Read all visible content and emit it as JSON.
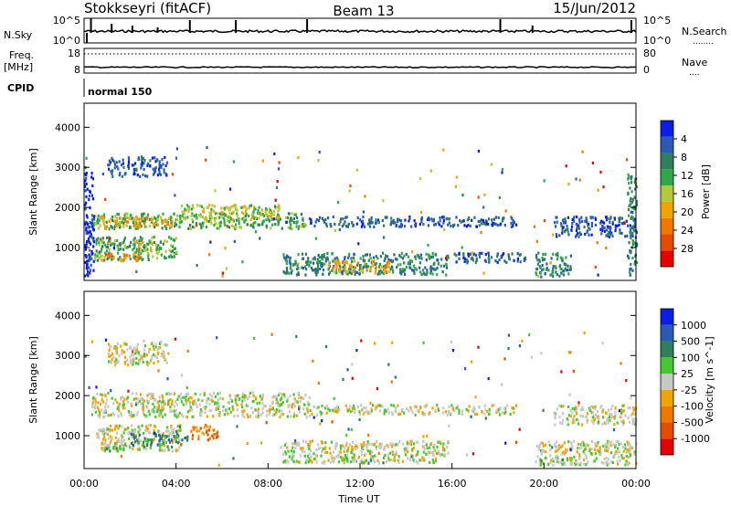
{
  "header": {
    "station": "Stokkseyri (fitACF)",
    "beam": "Beam 13",
    "date": "15/Jun/2012"
  },
  "noise_panel": {
    "left_label": "N.Sky",
    "right_label": "N.Search",
    "right_line_label": "........",
    "left_ticks": [
      "10^5",
      "10^0"
    ],
    "right_ticks": [
      "10^5",
      "10^0"
    ]
  },
  "freq_panel": {
    "left_label_top": "Freq.",
    "left_label_bottom": "[MHz]",
    "right_label": "Nave",
    "right_line_label": "....",
    "left_ticks": [
      "18",
      "8"
    ],
    "right_ticks": [
      "80",
      "0"
    ]
  },
  "cpid_panel": {
    "label": "CPID",
    "value": "normal 150"
  },
  "chart_data": [
    {
      "type": "heatmap",
      "name": "power",
      "ylabel": "Slant Range [km]",
      "ylim": [
        180,
        4600
      ],
      "yticks": [
        "1000",
        "2000",
        "3000",
        "4000"
      ],
      "ytick_values": [
        1000,
        2000,
        3000,
        4000
      ],
      "xlim": [
        0,
        24
      ],
      "colorbar_label": "Power [dB]",
      "colorbar_ticks": [
        "4",
        "8",
        "12",
        "16",
        "20",
        "24",
        "28"
      ],
      "colors": [
        "#0a1ee6",
        "#2a5ab4",
        "#2f7f5a",
        "#2fa84a",
        "#b4c83a",
        "#f0a400",
        "#f07800",
        "#e64b00",
        "#e60000"
      ],
      "regions": [
        {
          "t0": 0.3,
          "t1": 9.6,
          "r0": 1500,
          "r1": 1900,
          "level": 3
        },
        {
          "t0": 0.6,
          "t1": 3.8,
          "r0": 1550,
          "r1": 1800,
          "level": 5
        },
        {
          "t0": 4.2,
          "t1": 8.5,
          "r0": 1700,
          "r1": 2100,
          "level": 4
        },
        {
          "t0": 0.4,
          "t1": 4.0,
          "r0": 700,
          "r1": 1300,
          "level": 3
        },
        {
          "t0": 0.8,
          "t1": 2.4,
          "r0": 700,
          "r1": 900,
          "level": 6
        },
        {
          "t0": 2.2,
          "t1": 3.0,
          "r0": 950,
          "r1": 1200,
          "level": 5
        },
        {
          "t0": 1.0,
          "t1": 3.6,
          "r0": 2800,
          "r1": 3300,
          "level": 1
        },
        {
          "t0": 8.6,
          "t1": 15.8,
          "r0": 350,
          "r1": 900,
          "level": 2
        },
        {
          "t0": 10.6,
          "t1": 13.4,
          "r0": 400,
          "r1": 700,
          "level": 5
        },
        {
          "t0": 9.6,
          "t1": 18.8,
          "r0": 1550,
          "r1": 1800,
          "level": 1
        },
        {
          "t0": 16.0,
          "t1": 19.2,
          "r0": 650,
          "r1": 900,
          "level": 1
        },
        {
          "t0": 19.6,
          "t1": 21.2,
          "r0": 300,
          "r1": 900,
          "level": 2
        },
        {
          "t0": 20.4,
          "t1": 24.0,
          "r0": 1300,
          "r1": 1800,
          "level": 1
        },
        {
          "t0": 23.6,
          "t1": 24.0,
          "r0": 300,
          "r1": 2900,
          "level": 2
        },
        {
          "t0": 0.0,
          "t1": 0.4,
          "r0": 300,
          "r1": 2900,
          "level": 0
        }
      ]
    },
    {
      "type": "heatmap",
      "name": "velocity",
      "ylabel": "Slant Range [km]",
      "ylim": [
        180,
        4600
      ],
      "yticks": [
        "1000",
        "2000",
        "3000",
        "4000"
      ],
      "ytick_values": [
        1000,
        2000,
        3000,
        4000
      ],
      "xlim": [
        0,
        24
      ],
      "xlabel": "Time UT",
      "xticks": [
        "00:00",
        "04:00",
        "08:00",
        "12:00",
        "16:00",
        "20:00",
        "00:00"
      ],
      "colorbar_label": "Velocity [m s^-1]",
      "colorbar_ticks": [
        "1000",
        "500",
        "100",
        "25",
        "-25",
        "-100",
        "-500",
        "-1000"
      ],
      "colors": [
        "#0a1ee6",
        "#2a5ab4",
        "#2f7f5a",
        "#46c832",
        "#c8c8c8",
        "#f0a400",
        "#f07800",
        "#e64b00",
        "#e60000"
      ],
      "regions": [
        {
          "t0": 0.3,
          "t1": 9.8,
          "r0": 1500,
          "r1": 2100,
          "level": 4
        },
        {
          "t0": 0.5,
          "t1": 4.2,
          "r0": 650,
          "r1": 1300,
          "level": 4
        },
        {
          "t0": 0.8,
          "t1": 2.0,
          "r0": 650,
          "r1": 850,
          "level": 3
        },
        {
          "t0": 2.0,
          "t1": 3.8,
          "r0": 750,
          "r1": 1100,
          "level": 2
        },
        {
          "t0": 4.6,
          "t1": 5.8,
          "r0": 950,
          "r1": 1300,
          "level": 6
        },
        {
          "t0": 3.8,
          "t1": 4.5,
          "r0": 850,
          "r1": 1200,
          "level": 2
        },
        {
          "t0": 1.0,
          "t1": 3.6,
          "r0": 2800,
          "r1": 3400,
          "level": 4
        },
        {
          "t0": 8.6,
          "t1": 15.8,
          "r0": 350,
          "r1": 900,
          "level": 4
        },
        {
          "t0": 11.0,
          "t1": 13.0,
          "r0": 350,
          "r1": 450,
          "level": 3
        },
        {
          "t0": 9.8,
          "t1": 18.8,
          "r0": 1550,
          "r1": 1800,
          "level": 4
        },
        {
          "t0": 19.6,
          "t1": 24.0,
          "r0": 300,
          "r1": 900,
          "level": 4
        },
        {
          "t0": 20.4,
          "t1": 24.0,
          "r0": 1300,
          "r1": 1800,
          "level": 4
        }
      ]
    }
  ]
}
